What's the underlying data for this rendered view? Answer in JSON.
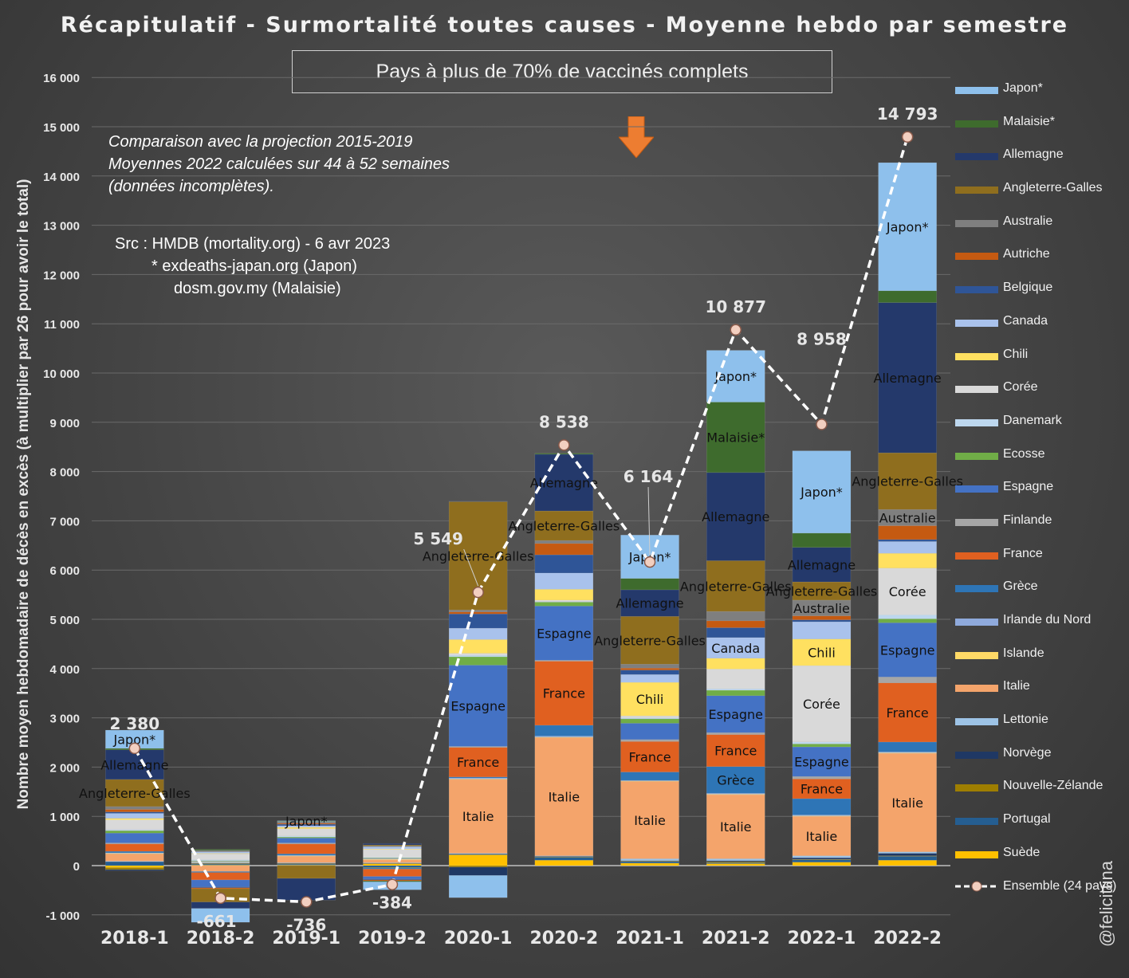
{
  "title": "Récapitulatif - Surmortalité toutes causes - Moyenne hebdo par semestre",
  "subtitle": "Pays à plus de 70% de vaccinés complets",
  "notes": [
    "Comparaison avec la projection 2015-2019",
    "Moyennes 2022 calculées sur 44 à 52 semaines",
    "(données incomplètes)."
  ],
  "sources": [
    "Src : HMDB (mortality.org) - 6 avr 2023",
    "* exdeaths-japan.org (Japon)",
    "dosm.gov.my (Malaisie)"
  ],
  "credit": "@felicittina",
  "colors": {
    "accent_arrow": "#ed7d31",
    "line": "#ffffff",
    "marker": "#f2cfc0"
  },
  "chart_data": {
    "type": "bar",
    "stacked": true,
    "ylabel": "Nombre moyen hebdomadaire de décès en excès (à multiplier par 26 pour avoir le total)",
    "ylim": [
      -1000,
      16000
    ],
    "yticks": [
      -1000,
      0,
      1000,
      2000,
      3000,
      4000,
      5000,
      6000,
      7000,
      8000,
      9000,
      10000,
      11000,
      12000,
      13000,
      14000,
      15000,
      16000
    ],
    "ytick_labels": [
      "-1 000",
      "0",
      "1 000",
      "2 000",
      "3 000",
      "4 000",
      "5 000",
      "6 000",
      "7 000",
      "8 000",
      "9 000",
      "10 000",
      "11 000",
      "12 000",
      "13 000",
      "14 000",
      "15 000",
      "16 000"
    ],
    "categories": [
      "2018-1",
      "2018-2",
      "2019-1",
      "2019-2",
      "2020-1",
      "2020-2",
      "2021-1",
      "2021-2",
      "2022-1",
      "2022-2"
    ],
    "series": [
      {
        "name": "Suède",
        "color": "#ffc000",
        "values": [
          -40,
          10,
          10,
          40,
          220,
          110,
          50,
          40,
          70,
          110
        ]
      },
      {
        "name": "Portugal",
        "color": "#255e91",
        "values": [
          80,
          20,
          20,
          -40,
          20,
          60,
          30,
          20,
          50,
          80
        ]
      },
      {
        "name": "Nouvelle-Zélande",
        "color": "#9e7e00",
        "values": [
          -40,
          10,
          10,
          -10,
          -30,
          10,
          10,
          20,
          10,
          10
        ]
      },
      {
        "name": "Norvège",
        "color": "#1f3864",
        "values": [
          -20,
          10,
          10,
          10,
          -170,
          10,
          10,
          20,
          30,
          50
        ]
      },
      {
        "name": "Lettonie",
        "color": "#9dc3e6",
        "values": [
          10,
          10,
          10,
          10,
          10,
          10,
          40,
          40,
          40,
          30
        ]
      },
      {
        "name": "Italie",
        "color": "#f4a46b",
        "values": [
          150,
          -120,
          130,
          60,
          1500,
          2400,
          1570,
          1300,
          800,
          2000
        ]
      },
      {
        "name": "Islande",
        "color": "#ffd966",
        "values": [
          10,
          10,
          10,
          10,
          10,
          10,
          10,
          10,
          10,
          10
        ]
      },
      {
        "name": "Irlande du Nord",
        "color": "#8faadc",
        "values": [
          10,
          10,
          10,
          10,
          20,
          20,
          10,
          20,
          20,
          20
        ]
      },
      {
        "name": "Grèce",
        "color": "#2e75b6",
        "values": [
          30,
          -20,
          30,
          -20,
          20,
          220,
          170,
          540,
          330,
          200
        ]
      },
      {
        "name": "France",
        "color": "#e06020",
        "values": [
          150,
          -150,
          200,
          -150,
          600,
          1300,
          620,
          650,
          400,
          1200
        ]
      },
      {
        "name": "Finlande",
        "color": "#a6a6a6",
        "values": [
          20,
          10,
          20,
          10,
          20,
          20,
          40,
          40,
          50,
          120
        ]
      },
      {
        "name": "Espagne",
        "color": "#4472c4",
        "values": [
          200,
          -140,
          100,
          -50,
          1650,
          1100,
          330,
          750,
          600,
          1100
        ]
      },
      {
        "name": "Ecosse",
        "color": "#70ad47",
        "values": [
          50,
          10,
          20,
          10,
          170,
          80,
          90,
          110,
          60,
          80
        ]
      },
      {
        "name": "Danemark",
        "color": "#bdd7ee",
        "values": [
          20,
          20,
          20,
          10,
          30,
          10,
          20,
          30,
          40,
          80
        ]
      },
      {
        "name": "Corée",
        "color": "#d9d9d9",
        "values": [
          200,
          120,
          150,
          160,
          40,
          30,
          40,
          400,
          1550,
          950
        ]
      },
      {
        "name": "Chili",
        "color": "#ffe060",
        "values": [
          30,
          10,
          30,
          10,
          280,
          220,
          680,
          220,
          540,
          300
        ]
      },
      {
        "name": "Canada",
        "color": "#a9c2ec",
        "values": [
          100,
          30,
          30,
          40,
          230,
          330,
          160,
          420,
          350,
          240
        ]
      },
      {
        "name": "Belgique",
        "color": "#2f5597",
        "values": [
          30,
          -20,
          30,
          -20,
          290,
          370,
          90,
          200,
          40,
          40
        ]
      },
      {
        "name": "Autriche",
        "color": "#c55a11",
        "values": [
          50,
          -20,
          20,
          -20,
          40,
          230,
          40,
          140,
          80,
          280
        ]
      },
      {
        "name": "Australie",
        "color": "#7f7f7f",
        "values": [
          60,
          30,
          30,
          20,
          40,
          60,
          80,
          190,
          320,
          330
        ]
      },
      {
        "name": "Angleterre-Galles",
        "color": "#8f6e1e",
        "values": [
          550,
          -270,
          -260,
          20,
          2200,
          600,
          970,
          1030,
          370,
          1150
        ]
      },
      {
        "name": "Allemagne",
        "color": "#24396b",
        "values": [
          600,
          -130,
          -440,
          30,
          10,
          1150,
          540,
          1790,
          700,
          3050
        ]
      },
      {
        "name": "Malaisie*",
        "color": "#3e6b2d",
        "values": [
          30,
          20,
          10,
          -20,
          0,
          20,
          230,
          1430,
          290,
          240
        ]
      },
      {
        "name": "Japon*",
        "color": "#8ec0ec",
        "values": [
          370,
          -280,
          10,
          -160,
          -450,
          0,
          880,
          1050,
          1670,
          2600
        ]
      }
    ],
    "totals_series": {
      "name": "Ensemble (24 pays)",
      "values": [
        2380,
        -661,
        -736,
        -384,
        5549,
        8538,
        6164,
        10877,
        8958,
        14793
      ],
      "labels": [
        "2 380",
        "-661",
        "-736",
        "-384",
        "5 549",
        "8 538",
        "6 164",
        "10 877",
        "8 958",
        "14 793"
      ]
    },
    "bar_labels": [
      {
        "category": "2018-1",
        "series": [
          "Japon*",
          "Allemagne",
          "Angleterre-Galles"
        ]
      },
      {
        "category": "2019-1",
        "series": [
          "Japon*"
        ]
      },
      {
        "category": "2020-1",
        "series": [
          "Angleterre-Galles",
          "Espagne",
          "France",
          "Italie"
        ]
      },
      {
        "category": "2020-2",
        "series": [
          "Allemagne",
          "Angleterre-Galles",
          "Espagne",
          "France",
          "Italie"
        ]
      },
      {
        "category": "2021-1",
        "series": [
          "Japon*",
          "Allemagne",
          "Angleterre-Galles",
          "Chili",
          "France",
          "Italie"
        ]
      },
      {
        "category": "2021-2",
        "series": [
          "Japon*",
          "Malaisie*",
          "Allemagne",
          "Angleterre-Galles",
          "Canada",
          "Espagne",
          "France",
          "Grèce",
          "Italie"
        ]
      },
      {
        "category": "2022-1",
        "series": [
          "Japon*",
          "Allemagne",
          "Angleterre-Galles",
          "Australie",
          "Chili",
          "Corée",
          "Espagne",
          "France",
          "Italie"
        ]
      },
      {
        "category": "2022-2",
        "series": [
          "Japon*",
          "Allemagne",
          "Angleterre-Galles",
          "Australie",
          "Corée",
          "Espagne",
          "France",
          "Italie"
        ]
      }
    ],
    "legend_position": "right",
    "grid": true
  }
}
